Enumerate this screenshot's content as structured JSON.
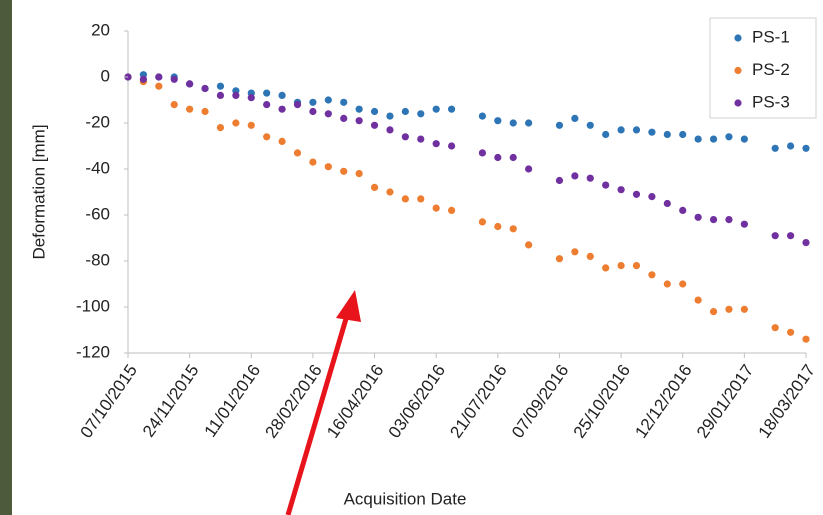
{
  "chart_data": {
    "type": "scatter",
    "x_label": "Acquisition Date",
    "y_label": "Deformation [mm]",
    "x": [
      "07/10/2015",
      "19/10/2015",
      "31/10/2015",
      "12/11/2015",
      "24/11/2015",
      "06/12/2015",
      "18/12/2015",
      "30/12/2015",
      "11/01/2016",
      "23/01/2016",
      "04/02/2016",
      "16/02/2016",
      "28/02/2016",
      "11/03/2016",
      "23/03/2016",
      "04/04/2016",
      "16/04/2016",
      "28/04/2016",
      "10/05/2016",
      "22/05/2016",
      "03/06/2016",
      "15/06/2016",
      "09/07/2016",
      "21/07/2016",
      "02/08/2016",
      "14/08/2016",
      "07/09/2016",
      "19/09/2016",
      "01/10/2016",
      "13/10/2016",
      "25/10/2016",
      "06/11/2016",
      "18/11/2016",
      "30/11/2016",
      "12/12/2016",
      "24/12/2016",
      "05/01/2017",
      "17/01/2017",
      "29/01/2017",
      "22/02/2017",
      "06/03/2017",
      "18/03/2017"
    ],
    "series": [
      {
        "name": "PS-1",
        "color": "#2e75b6",
        "values": [
          0,
          1,
          0,
          0,
          -3,
          -5,
          -4,
          -6,
          -7,
          -7,
          -8,
          -11,
          -11,
          -10,
          -11,
          -14,
          -15,
          -17,
          -15,
          -16,
          -14,
          -14,
          -17,
          -19,
          -20,
          -20,
          -21,
          -18,
          -21,
          -25,
          -23,
          -23,
          -24,
          -25,
          -25,
          -27,
          -27,
          -26,
          -27,
          -31,
          -30,
          -31
        ]
      },
      {
        "name": "PS-2",
        "color": "#ed7d31",
        "values": [
          0,
          -2,
          -4,
          -12,
          -14,
          -15,
          -22,
          -20,
          -21,
          -26,
          -28,
          -33,
          -37,
          -39,
          -41,
          -42,
          -48,
          -50,
          -53,
          -53,
          -57,
          -58,
          -63,
          -65,
          -66,
          -73,
          -79,
          -76,
          -78,
          -83,
          -82,
          -82,
          -86,
          -90,
          -90,
          -97,
          -102,
          -101,
          -101,
          -109,
          -111,
          -114
        ]
      },
      {
        "name": "PS-3",
        "color": "#7030a0",
        "values": [
          0,
          -1,
          0,
          -1,
          -3,
          -5,
          -8,
          -8,
          -9,
          -12,
          -14,
          -12,
          -15,
          -16,
          -18,
          -19,
          -21,
          -23,
          -26,
          -27,
          -29,
          -30,
          -33,
          -35,
          -35,
          -40,
          -45,
          -43,
          -44,
          -47,
          -49,
          -51,
          -52,
          -55,
          -58,
          -61,
          -62,
          -62,
          -64,
          -69,
          -69,
          -72
        ]
      }
    ],
    "xlim": [
      "07/10/2015",
      "18/03/2017"
    ],
    "xticks": [
      "07/10/2015",
      "24/11/2015",
      "11/01/2016",
      "28/02/2016",
      "16/04/2016",
      "03/06/2016",
      "21/07/2016",
      "07/09/2016",
      "25/10/2016",
      "12/12/2016",
      "29/01/2017",
      "18/03/2017"
    ],
    "ylim": [
      -120,
      20
    ],
    "yticks": [
      -120,
      -100,
      -80,
      -60,
      -40,
      -20,
      0,
      20
    ],
    "grid": false,
    "legend": "upper right"
  }
}
